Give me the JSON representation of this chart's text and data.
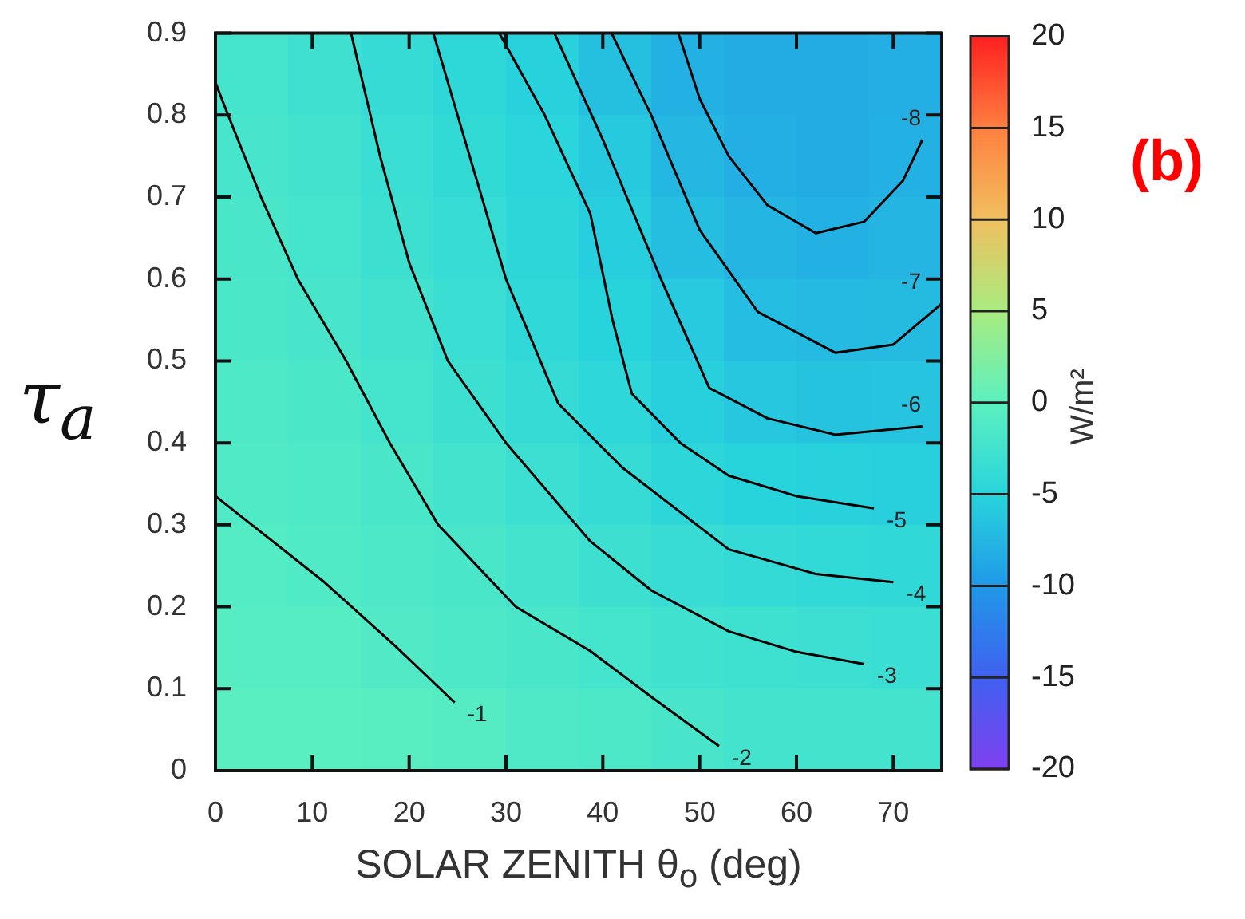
{
  "chart_data": {
    "type": "heatmap",
    "xlabel": "SOLAR ZENITH θ$_{o}$ (deg)",
    "ylabel": "τ$_{a}$",
    "clabel": "W/m²",
    "x": [
      3.75,
      11.25,
      18.75,
      26.25,
      33.75,
      41.25,
      48.75,
      56.25,
      63.75,
      71.25
    ],
    "cells": [
      [
        -2.2,
        -2.8,
        -3.7,
        -4.3,
        -5.2,
        -6.7,
        -7.9,
        -8.3,
        -8.4,
        -8.2
      ],
      [
        -2.0,
        -2.5,
        -3.3,
        -4.0,
        -4.8,
        -5.9,
        -7.4,
        -8.1,
        -8.3,
        -8.0
      ],
      [
        -1.8,
        -2.2,
        -3.0,
        -3.6,
        -4.5,
        -5.5,
        -6.8,
        -7.6,
        -7.9,
        -7.6
      ],
      [
        -1.6,
        -1.9,
        -2.5,
        -3.3,
        -4.2,
        -5.0,
        -5.8,
        -6.9,
        -7.2,
        -7.1
      ],
      [
        -1.3,
        -1.6,
        -2.2,
        -3.0,
        -3.7,
        -4.4,
        -5.3,
        -6.1,
        -6.4,
        -6.3
      ],
      [
        -1.1,
        -1.3,
        -1.8,
        -2.4,
        -3.1,
        -3.7,
        -4.5,
        -5.0,
        -5.2,
        -5.3
      ],
      [
        -0.8,
        -1.1,
        -1.4,
        -1.8,
        -2.4,
        -3.0,
        -3.5,
        -3.9,
        -4.1,
        -4.2
      ],
      [
        -0.5,
        -0.6,
        -1.0,
        -1.4,
        -1.7,
        -2.2,
        -2.6,
        -2.9,
        -3.1,
        -3.2
      ],
      [
        -0.2,
        -0.2,
        -0.3,
        -0.7,
        -1.2,
        -1.5,
        -1.9,
        -2.3,
        -2.4,
        -2.4
      ]
    ],
    "clim": [
      -20,
      20
    ],
    "cticks": [
      -20,
      -15,
      -10,
      -5,
      0,
      5,
      10,
      15,
      20
    ],
    "xlim": [
      0,
      75
    ],
    "xticks": [
      0,
      10,
      20,
      30,
      40,
      50,
      60,
      70
    ],
    "ylim": [
      0,
      0.9
    ],
    "yticks": [
      0,
      0.1,
      0.2,
      0.3,
      0.4,
      0.5,
      0.6,
      0.7,
      0.8,
      0.9
    ],
    "series": [
      {
        "type": "line",
        "name": "-1",
        "color": "#000000",
        "x": [
          0,
          3.75,
          11.25,
          18.75,
          24.7
        ],
        "values": [
          0.335,
          0.3,
          0.23,
          0.15,
          0.083
        ]
      },
      {
        "type": "line",
        "name": "-2",
        "color": "#000000",
        "x": [
          0,
          1.3,
          4.7,
          8.5,
          13.5,
          18,
          23,
          31,
          38.7,
          45,
          52
        ],
        "values": [
          0.84,
          0.8,
          0.7,
          0.6,
          0.5,
          0.4,
          0.3,
          0.2,
          0.146,
          0.09,
          0.03
        ]
      },
      {
        "type": "line",
        "name": "-3",
        "color": "#000000",
        "x": [
          14,
          17,
          20,
          24,
          30,
          38.7,
          45,
          53,
          60,
          67
        ],
        "values": [
          0.9,
          0.75,
          0.62,
          0.5,
          0.4,
          0.28,
          0.22,
          0.17,
          0.145,
          0.13
        ]
      },
      {
        "type": "line",
        "name": "-4",
        "color": "#000000",
        "x": [
          22.5,
          26,
          30,
          35.4,
          42,
          53,
          62,
          70
        ],
        "values": [
          0.9,
          0.76,
          0.6,
          0.448,
          0.37,
          0.27,
          0.24,
          0.23
        ]
      },
      {
        "type": "line",
        "name": "-5",
        "color": "#000000",
        "x": [
          29.3,
          34,
          38.7,
          41,
          43,
          48,
          53,
          60,
          68
        ],
        "values": [
          0.9,
          0.8,
          0.68,
          0.55,
          0.46,
          0.4,
          0.36,
          0.335,
          0.32
        ]
      },
      {
        "type": "line",
        "name": "-6",
        "color": "#000000",
        "x": [
          35,
          40,
          46,
          51,
          57,
          64,
          73
        ],
        "values": [
          0.9,
          0.77,
          0.6,
          0.467,
          0.43,
          0.41,
          0.42
        ]
      },
      {
        "type": "line",
        "name": "-7",
        "color": "#000000",
        "x": [
          40.9,
          45,
          50,
          56,
          64,
          70,
          75
        ],
        "values": [
          0.9,
          0.8,
          0.66,
          0.56,
          0.51,
          0.52,
          0.57
        ]
      },
      {
        "type": "line",
        "name": "-8",
        "color": "#000000",
        "x": [
          47.8,
          50,
          53,
          57,
          62,
          67,
          71,
          73
        ],
        "values": [
          0.9,
          0.82,
          0.75,
          0.69,
          0.656,
          0.67,
          0.72,
          0.77
        ]
      }
    ],
    "annotations": [
      "(b)"
    ]
  }
}
